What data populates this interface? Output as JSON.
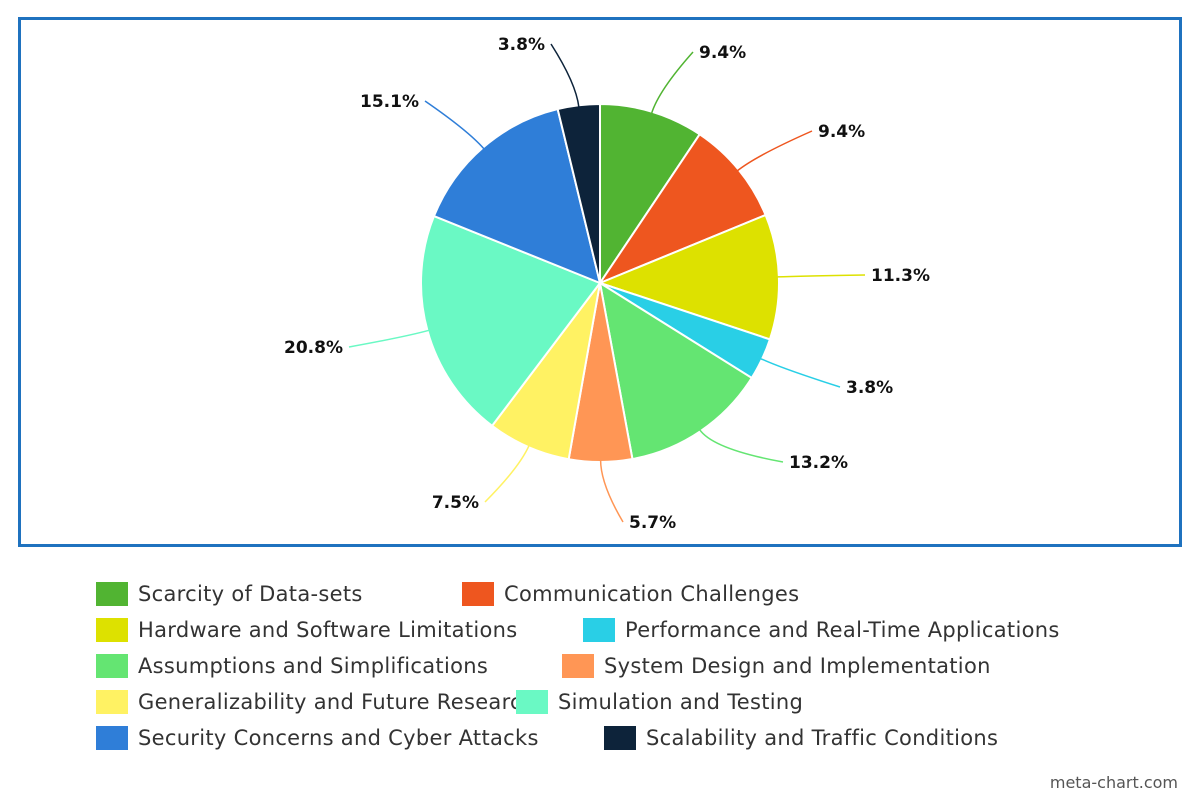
{
  "chart_data": {
    "type": "pie",
    "slices": [
      {
        "label": "Scarcity of Data-sets",
        "value": 9.4,
        "display": "9.4%",
        "color": "#51b432"
      },
      {
        "label": "Communication Challenges",
        "value": 9.4,
        "display": "9.4%",
        "color": "#ee561f"
      },
      {
        "label": "Hardware and Software Limitations",
        "value": 11.3,
        "display": "11.3%",
        "color": "#dde100"
      },
      {
        "label": "Performance and Real-Time Applications",
        "value": 3.8,
        "display": "3.8%",
        "color": "#29cfe6"
      },
      {
        "label": "Assumptions and Simplifications",
        "value": 13.2,
        "display": "13.2%",
        "color": "#64e572"
      },
      {
        "label": "System Design and Implementation",
        "value": 5.7,
        "display": "5.7%",
        "color": "#ff9655"
      },
      {
        "label": "Generalizability and Future Research",
        "value": 7.5,
        "display": "7.5%",
        "color": "#fff263"
      },
      {
        "label": "Simulation and Testing",
        "value": 20.8,
        "display": "20.8%",
        "color": "#6af9c4"
      },
      {
        "label": "Security Concerns and Cyber Attacks",
        "value": 15.1,
        "display": "15.1%",
        "color": "#2f7ed8"
      },
      {
        "label": "Scalability and Traffic Conditions",
        "value": 3.8,
        "display": "3.8%",
        "color": "#0d233a"
      }
    ],
    "legend_position": "bottom"
  },
  "frame_color": "#1f72bf",
  "credit": "meta-chart.com"
}
